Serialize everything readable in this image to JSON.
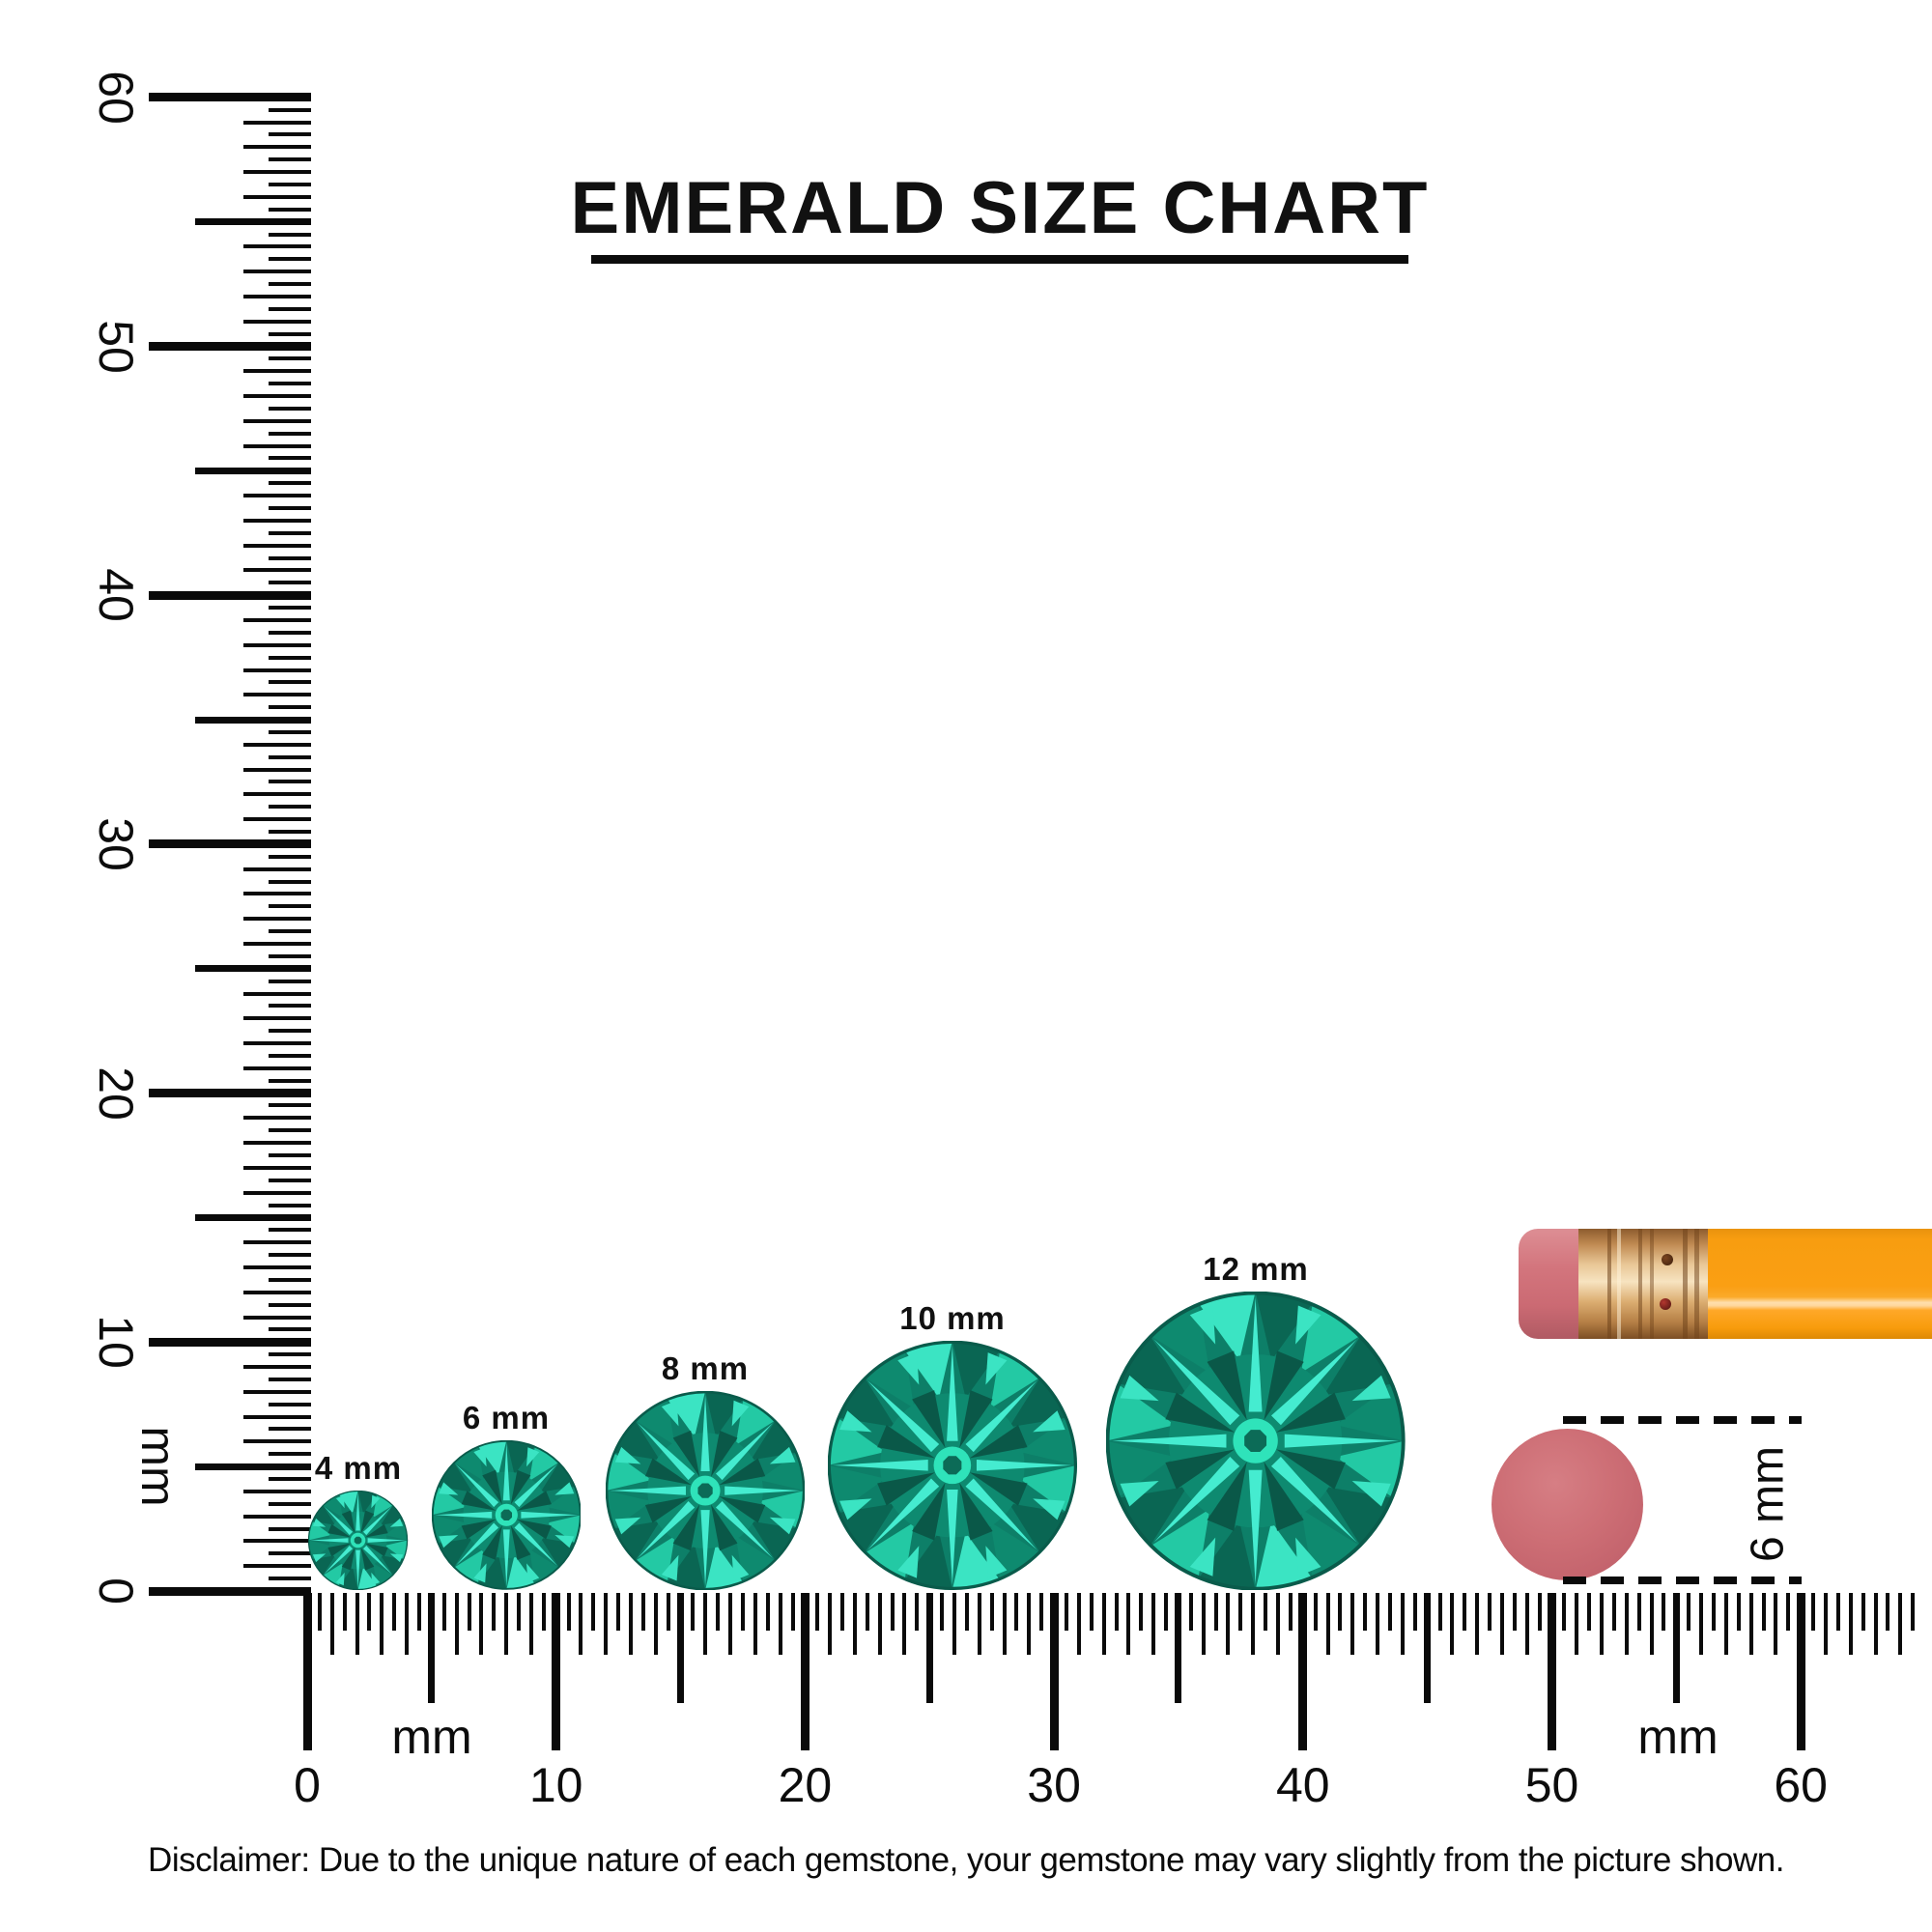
{
  "title": "EMERALD SIZE CHART",
  "vertical_ruler": {
    "unit": "mm",
    "labels": [
      "0",
      "10",
      "20",
      "30",
      "40",
      "50",
      "60"
    ]
  },
  "horizontal_ruler": {
    "unit_left": "mm",
    "unit_right": "mm",
    "labels": [
      "0",
      "10",
      "20",
      "30",
      "40",
      "50",
      "60"
    ]
  },
  "gems": [
    {
      "label": "4 mm",
      "mm": 4
    },
    {
      "label": "6 mm",
      "mm": 6
    },
    {
      "label": "8 mm",
      "mm": 8
    },
    {
      "label": "10 mm",
      "mm": 10
    },
    {
      "label": "12 mm",
      "mm": 12
    }
  ],
  "eraser_comparison": {
    "label": "6 mm",
    "height_mm": 6
  },
  "disclaimer": "Disclaimer: Due to the unique nature of each gemstone, your gemstone may vary slightly from the picture shown.",
  "colors": {
    "tick": "#0a0a0a",
    "gem_palette": {
      "base": "#0d7f68",
      "inner": "#0e8a70",
      "rim_dark": "#0a6653",
      "rim_mid": "#0e8a6f",
      "rim_light": "#23c9a4",
      "rim_bright": "#3be4c3",
      "star": "#45ecd0",
      "star_deep": "#0a5848",
      "center": "#2fe3ba",
      "center_dark": "#0c6b57",
      "outline": "#0a5b4b"
    },
    "pencil_eraser": "#d3757d",
    "pencil_ferrule": "#e8c695",
    "pencil_body": "#f89d10",
    "round_eraser": "#cd6e75"
  }
}
